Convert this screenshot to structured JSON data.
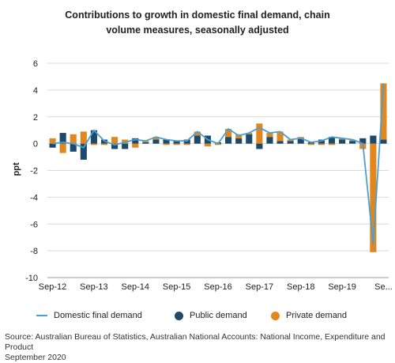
{
  "title_lines": [
    "Contributions to growth in domestic final demand, chain",
    "volume measures, seasonally adjusted"
  ],
  "source_lines": [
    "Source: Australian Bureau of Statistics, Australian National Accounts: National Income, Expenditure and Product",
    "September 2020"
  ],
  "colors": {
    "line": "#4a9fd5",
    "public": "#1d4a6b",
    "private": "#e0871f",
    "grid": "#d9d9d9"
  },
  "chart_data": {
    "type": "bar",
    "ylabel": "ppt",
    "ylim": [
      -10,
      6
    ],
    "yticks": [
      6,
      4,
      2,
      0,
      -2,
      -4,
      -6,
      -8,
      -10
    ],
    "grid": true,
    "legend_placement": "bottom",
    "x": [
      "Sep-12",
      "Dec-12",
      "Mar-13",
      "Jun-13",
      "Sep-13",
      "Dec-13",
      "Mar-14",
      "Jun-14",
      "Sep-14",
      "Dec-14",
      "Mar-15",
      "Jun-15",
      "Sep-15",
      "Dec-15",
      "Mar-16",
      "Jun-16",
      "Sep-16",
      "Dec-16",
      "Mar-17",
      "Jun-17",
      "Sep-17",
      "Dec-17",
      "Mar-18",
      "Jun-18",
      "Sep-18",
      "Dec-18",
      "Mar-19",
      "Jun-19",
      "Sep-19",
      "Dec-19",
      "Mar-20",
      "Jun-20",
      "Sep-20"
    ],
    "xtick_labels": [
      {
        "index": 0,
        "label": "Sep-12"
      },
      {
        "index": 4,
        "label": "Sep-13"
      },
      {
        "index": 8,
        "label": "Sep-14"
      },
      {
        "index": 12,
        "label": "Sep-15"
      },
      {
        "index": 16,
        "label": "Sep-16"
      },
      {
        "index": 20,
        "label": "Sep-17"
      },
      {
        "index": 24,
        "label": "Sep-18"
      },
      {
        "index": 28,
        "label": "Sep-19"
      },
      {
        "index": 32,
        "label": "Se..."
      }
    ],
    "series": [
      {
        "name": "Domestic final demand",
        "kind": "line",
        "values": [
          0.0,
          0.1,
          0.0,
          -0.3,
          1.0,
          0.2,
          -0.1,
          0.1,
          0.3,
          0.2,
          0.5,
          0.3,
          0.2,
          0.2,
          0.9,
          0.3,
          0.0,
          1.1,
          0.6,
          0.8,
          1.2,
          0.8,
          0.9,
          0.3,
          0.4,
          0.1,
          0.2,
          0.5,
          0.4,
          0.3,
          0.0,
          -7.5,
          4.5
        ]
      },
      {
        "name": "Public demand",
        "kind": "bar",
        "values": [
          -0.3,
          0.8,
          -0.6,
          -1.2,
          1.0,
          0.3,
          -0.4,
          -0.4,
          0.4,
          0.1,
          0.3,
          0.3,
          0.2,
          0.3,
          0.6,
          0.6,
          0.1,
          0.5,
          0.4,
          0.7,
          -0.4,
          0.5,
          0.2,
          0.2,
          0.4,
          0.1,
          0.3,
          0.5,
          0.3,
          0.2,
          0.4,
          0.6,
          0.3
        ]
      },
      {
        "name": "Private demand",
        "kind": "bar",
        "values": [
          0.4,
          -0.7,
          0.7,
          0.9,
          -0.1,
          -0.1,
          0.5,
          0.3,
          -0.3,
          0.1,
          0.2,
          -0.1,
          -0.1,
          -0.1,
          0.3,
          -0.2,
          -0.1,
          0.6,
          0.3,
          0.1,
          1.5,
          0.3,
          0.7,
          0.1,
          0.1,
          -0.1,
          -0.1,
          -0.1,
          0.1,
          0.1,
          -0.4,
          -8.1,
          4.2
        ]
      }
    ]
  }
}
